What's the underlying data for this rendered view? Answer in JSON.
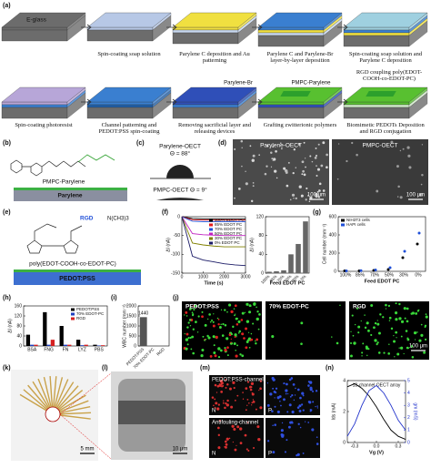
{
  "figure": {
    "panel_labels": [
      "(a)",
      "(b)",
      "(c)",
      "(d)",
      "(e)",
      "(f)",
      "(g)",
      "(h)",
      "(i)",
      "(j)",
      "(k)",
      "(l)",
      "(m)",
      "(n)"
    ],
    "a": {
      "substrate": "E-glass",
      "steps": [
        "Spin-coating soap solution",
        "Parylene C deposition and Au patterning",
        "Parylene C and Parylene-Br layer-by-layer deposition",
        "Spin-coating soap solution and Parylene C deposition",
        "Spin-coating photoresist",
        "Channel patterning and PEDOT:PSS spin-coating",
        "Removing sacrificial layer and releasing devices",
        "Grafting zwitterionic polymers",
        "Biomimetic PEDOTs Deposition and RGD conjugation"
      ],
      "callouts": [
        "Parylene-Br",
        "PMPC-Parylene",
        "RGD coupling poly(EDOT-COOH-co-EDOT-PC)"
      ]
    },
    "b": {
      "molecule": "PMPC-Parylene",
      "layer": "Parylene"
    },
    "c": {
      "top": "Parylene-OECT",
      "top_angle": "Θ = 88°",
      "bottom": "PMPC-OECT  Θ = 9°"
    },
    "d": {
      "left": "Parylene-OECT",
      "right": "PMPC-OECT",
      "scale_left": "100 μm",
      "scale_right": "100 μm"
    },
    "e": {
      "tag": "RGD",
      "group": "N(CH3)3",
      "polymer": "poly(EDOT-COOH-co-EDOT-PC)",
      "layer": "PEDOT:PSS"
    },
    "j": {
      "titles": [
        "PEDOT:PSS",
        "70% EDOT-PC",
        "RGD"
      ],
      "scale": "100 μm"
    },
    "k": {
      "scale": "5 mm"
    },
    "l": {
      "scale": "10 μm"
    },
    "m": {
      "titles": [
        "PEDOT:PSS-channel",
        "Antifouling-channel"
      ],
      "corners": [
        "N",
        "P",
        "N",
        "P"
      ]
    }
  },
  "chart_data": [
    {
      "type": "line",
      "xlabel": "Time (s)",
      "ylabel": "ΔI (nA)",
      "x": [
        0,
        500,
        1000,
        1500,
        2000,
        2500,
        3000
      ],
      "xlim": [
        0,
        3000
      ],
      "xticks": [
        0,
        1000,
        2000,
        3000
      ],
      "ylim": [
        -150,
        0
      ],
      "yticks": [
        -150,
        -100,
        -50,
        0
      ],
      "legend": "upper right",
      "series": [
        {
          "name": "100% EDOT PC",
          "color": "#000000",
          "values": [
            0,
            -5,
            -6,
            -6,
            -6,
            -6,
            -6
          ]
        },
        {
          "name": "85% EDOT PC",
          "color": "#e41a1c",
          "values": [
            0,
            -8,
            -9,
            -9,
            -9,
            -9,
            -9
          ]
        },
        {
          "name": "70% EDOT PC",
          "color": "#1f4fd8",
          "values": [
            0,
            -12,
            -13,
            -13,
            -13,
            -13,
            -13
          ]
        },
        {
          "name": "50% EDOT PC",
          "color": "#c020c0",
          "values": [
            0,
            -45,
            -48,
            -49,
            -50,
            -50,
            -50
          ]
        },
        {
          "name": "30% EDOT PC",
          "color": "#808000",
          "values": [
            0,
            -70,
            -75,
            -78,
            -80,
            -80,
            -80
          ]
        },
        {
          "name": "0% EDOT PC",
          "color": "#1a1a66",
          "values": [
            0,
            -105,
            -115,
            -120,
            -125,
            -128,
            -130
          ]
        }
      ]
    },
    {
      "type": "bar",
      "xlabel": "Feed EDOT PC",
      "ylabel": "ΔI (nA)",
      "categories": [
        "100%",
        "85%",
        "70%",
        "50%",
        "30%",
        "0%"
      ],
      "values": [
        3,
        4,
        6,
        40,
        62,
        110
      ],
      "color": "#666666",
      "ylim": [
        0,
        120
      ],
      "yticks": [
        0,
        40,
        80,
        120
      ]
    },
    {
      "type": "scatter",
      "xlabel": "Feed EDOT PC",
      "ylabel": "Cell number (mm⁻²)",
      "categories": [
        "100%",
        "85%",
        "70%",
        "50%",
        "30%",
        "0%"
      ],
      "ylim": [
        0,
        600
      ],
      "yticks": [
        0,
        200,
        400,
        600
      ],
      "legend": "upper left",
      "series": [
        {
          "name": "NIH3T3 cells",
          "color": "#000000",
          "values": [
            5,
            5,
            10,
            20,
            150,
            300
          ]
        },
        {
          "name": "HAPI cells",
          "color": "#1f4fd8",
          "values": [
            5,
            8,
            15,
            40,
            220,
            420
          ]
        }
      ]
    },
    {
      "type": "bar",
      "ylabel": "ΔI (nA)",
      "categories": [
        "BSA",
        "FNG",
        "FN",
        "LYZ",
        "PBS"
      ],
      "ylim": [
        0,
        160
      ],
      "yticks": [
        0,
        40,
        80,
        120,
        160
      ],
      "legend": "upper right",
      "series": [
        {
          "name": "PEDOT:PSS",
          "color": "#000000",
          "values": [
            45,
            135,
            80,
            25,
            5
          ]
        },
        {
          "name": "70% EDOT-PC",
          "color": "#1f3fbf",
          "values": [
            5,
            5,
            5,
            3,
            2
          ]
        },
        {
          "name": "RGD",
          "color": "#d42020",
          "values": [
            5,
            25,
            5,
            5,
            3
          ]
        }
      ]
    },
    {
      "type": "bar",
      "ylabel": "WBC number (mm⁻²)",
      "categories": [
        "PEDOT:PSS",
        "70% EDOT-PC",
        "RGD"
      ],
      "values": [
        1440,
        5,
        5
      ],
      "color": "#555555",
      "ylim": [
        0,
        2000
      ],
      "yticks": [
        0,
        500,
        1000,
        1500,
        2000
      ],
      "label_first": true
    },
    {
      "type": "line",
      "title": "18-channel OECT array",
      "xlabel": "Vg (V)",
      "ylabel": "Ids (mA)",
      "y2label": "gm (mS)",
      "x": [
        -0.4,
        -0.3,
        -0.2,
        -0.1,
        0,
        0.1,
        0.2,
        0.3,
        0.4
      ],
      "xlim": [
        -0.4,
        0.4
      ],
      "xticks": [
        -0.3,
        {
          "value": 0,
          "label": "0.0"
        },
        0.3
      ],
      "ylim": [
        0,
        4
      ],
      "yticks": [
        0,
        2,
        4
      ],
      "y2lim": [
        0,
        5
      ],
      "y2ticks": [
        0,
        1,
        2,
        3,
        4,
        5
      ],
      "series": [
        {
          "name": "Ids",
          "color": "#000000",
          "values": [
            3.6,
            3.8,
            3.5,
            3.0,
            2.3,
            1.5,
            0.8,
            0.4,
            0.2
          ]
        },
        {
          "name": "gm",
          "color": "#2233cc",
          "axis": "y2",
          "values": [
            0.5,
            1.5,
            3.0,
            4.2,
            4.6,
            4.0,
            3.0,
            1.8,
            1.0
          ]
        }
      ]
    }
  ]
}
